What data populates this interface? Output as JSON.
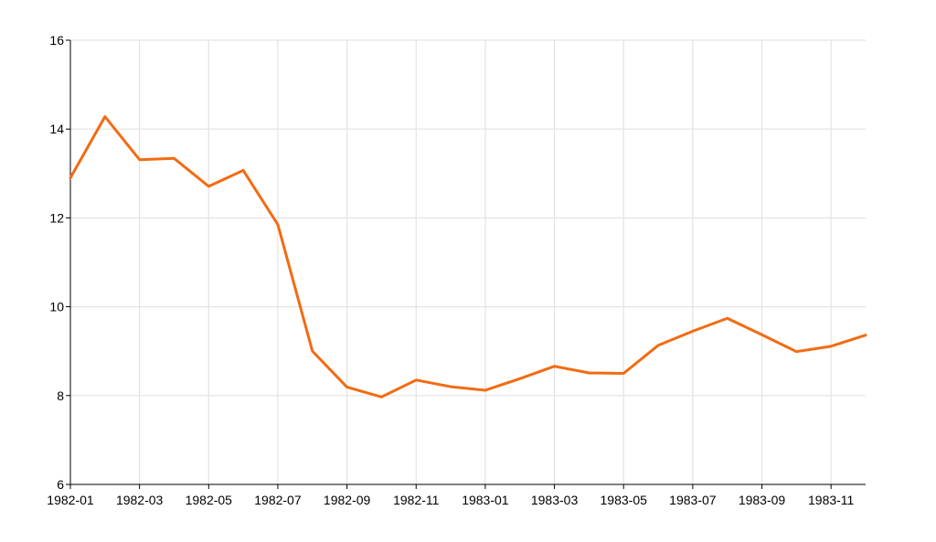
{
  "chart_data": {
    "type": "line",
    "title": "",
    "xlabel": "",
    "ylabel": "",
    "x": [
      "1982-01",
      "1982-02",
      "1982-03",
      "1982-04",
      "1982-05",
      "1982-06",
      "1982-07",
      "1982-08",
      "1982-09",
      "1982-10",
      "1982-11",
      "1982-12",
      "1983-01",
      "1983-02",
      "1983-03",
      "1983-04",
      "1983-05",
      "1983-06",
      "1983-07",
      "1983-08",
      "1983-09",
      "1983-10",
      "1983-11",
      "1983-12"
    ],
    "series": [
      {
        "color": "#f26b12",
        "values": [
          12.9,
          14.28,
          13.31,
          13.34,
          12.71,
          13.07,
          11.85,
          9.0,
          8.19,
          7.97,
          8.35,
          8.2,
          8.12,
          8.38,
          8.66,
          8.51,
          8.5,
          9.13,
          9.45,
          9.74,
          9.37,
          8.99,
          9.11,
          9.36
        ]
      }
    ],
    "x_ticks": [
      "1982-01",
      "1982-03",
      "1982-05",
      "1982-07",
      "1982-09",
      "1982-11",
      "1983-01",
      "1983-03",
      "1983-05",
      "1983-07",
      "1983-09",
      "1983-11"
    ],
    "y_ticks": [
      6,
      8,
      10,
      12,
      14,
      16
    ],
    "ylim": [
      6,
      16
    ],
    "xlim": [
      "1982-01",
      "1983-12"
    ],
    "grid": true,
    "legend": "none"
  }
}
